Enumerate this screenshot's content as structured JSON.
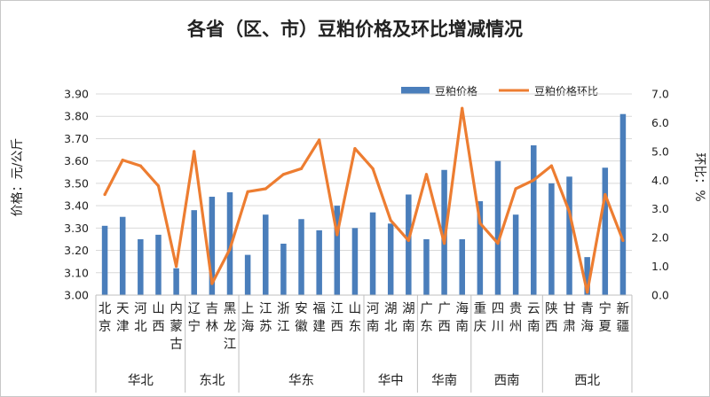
{
  "chart_data": {
    "type": "bar",
    "title": "各省（区、市）豆粕价格及环比增减情况",
    "ylabel_left": "价格：元/公斤",
    "ylabel_right": "环比：%",
    "ylim_left": [
      3.0,
      3.9
    ],
    "ylim_right": [
      0.0,
      7.0
    ],
    "yticks_left": [
      "3.00",
      "3.10",
      "3.20",
      "3.30",
      "3.40",
      "3.50",
      "3.60",
      "3.70",
      "3.80",
      "3.90"
    ],
    "yticks_right": [
      "0.0",
      "1.0",
      "2.0",
      "3.0",
      "4.0",
      "5.0",
      "6.0",
      "7.0"
    ],
    "categories": [
      "北京",
      "天津",
      "河北",
      "山西",
      "内蒙古",
      "辽宁",
      "吉林",
      "黑龙江",
      "上海",
      "江苏",
      "浙江",
      "安徽",
      "福建",
      "江西",
      "山东",
      "河南",
      "湖北",
      "湖南",
      "广东",
      "广西",
      "海南",
      "重庆",
      "四川",
      "贵州",
      "云南",
      "陕西",
      "甘肃",
      "青海",
      "宁夏",
      "新疆"
    ],
    "regions": [
      {
        "name": "华北",
        "count": 5
      },
      {
        "name": "东北",
        "count": 3
      },
      {
        "name": "华东",
        "count": 7
      },
      {
        "name": "华中",
        "count": 3
      },
      {
        "name": "华南",
        "count": 3
      },
      {
        "name": "西南",
        "count": 4
      },
      {
        "name": "西北",
        "count": 5
      }
    ],
    "series": [
      {
        "name": "豆粕价格",
        "type": "bar",
        "axis": "left",
        "color": "#4a7ebb",
        "values": [
          3.31,
          3.35,
          3.25,
          3.27,
          3.12,
          3.38,
          3.44,
          3.46,
          3.18,
          3.36,
          3.23,
          3.34,
          3.29,
          3.4,
          3.3,
          3.37,
          3.32,
          3.45,
          3.25,
          3.56,
          3.25,
          3.42,
          3.6,
          3.36,
          3.67,
          3.5,
          3.53,
          3.17,
          3.57,
          3.81
        ]
      },
      {
        "name": "豆粕价格环比",
        "type": "line",
        "axis": "right",
        "color": "#ed7d31",
        "values": [
          3.5,
          4.7,
          4.5,
          3.8,
          1.0,
          5.0,
          0.4,
          1.6,
          3.6,
          3.7,
          4.2,
          4.4,
          5.4,
          2.1,
          5.1,
          4.4,
          2.6,
          1.9,
          4.2,
          1.8,
          6.5,
          2.5,
          1.8,
          3.7,
          4.0,
          4.5,
          2.9,
          0.1,
          3.5,
          1.9
        ]
      }
    ],
    "legend_position": "top-right",
    "grid": true
  }
}
